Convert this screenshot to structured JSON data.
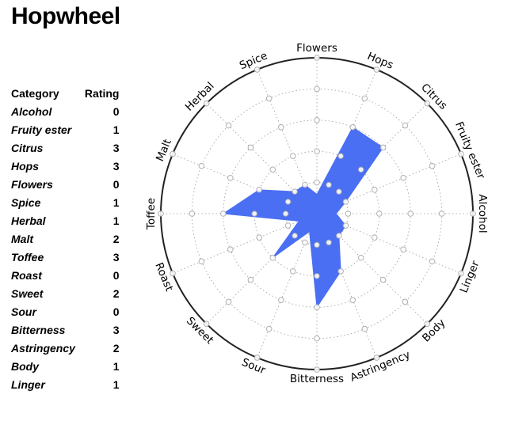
{
  "title": "Hopwheel",
  "table": {
    "header_category": "Category",
    "header_rating": "Rating"
  },
  "colors": {
    "fill": "#4a6ff3",
    "outer_ring": "#222222",
    "grid": "#9a9a9a",
    "marker_fill": "#ffffff",
    "marker_stroke": "#a8a8a8"
  },
  "chart_data": {
    "type": "radar",
    "title": "Hopwheel",
    "categories": [
      "Flowers",
      "Hops",
      "Citrus",
      "Fruity ester",
      "Alcohol",
      "Linger",
      "Body",
      "Astringency",
      "Bitterness",
      "Sour",
      "Sweet",
      "Roast",
      "Toffee",
      "Malt",
      "Herbal",
      "Spice"
    ],
    "values": [
      0,
      3,
      3,
      1,
      0,
      1,
      1,
      2,
      3,
      0,
      2,
      0,
      3,
      2,
      1,
      1
    ],
    "rlim": [
      0,
      5
    ],
    "ring_levels": [
      1,
      2,
      3,
      4,
      5
    ],
    "grid": true,
    "legend": "none",
    "table_rows": [
      {
        "category": "Alcohol",
        "rating": "0"
      },
      {
        "category": "Fruity ester",
        "rating": "1"
      },
      {
        "category": "Citrus",
        "rating": "3"
      },
      {
        "category": "Hops",
        "rating": "3"
      },
      {
        "category": "Flowers",
        "rating": "0"
      },
      {
        "category": "Spice",
        "rating": "1"
      },
      {
        "category": "Herbal",
        "rating": "1"
      },
      {
        "category": "Malt",
        "rating": "2"
      },
      {
        "category": "Toffee",
        "rating": "3"
      },
      {
        "category": "Roast",
        "rating": "0"
      },
      {
        "category": "Sweet",
        "rating": "2"
      },
      {
        "category": "Sour",
        "rating": "0"
      },
      {
        "category": "Bitterness",
        "rating": "3"
      },
      {
        "category": "Astringency",
        "rating": "2"
      },
      {
        "category": "Body",
        "rating": "1"
      },
      {
        "category": "Linger",
        "rating": "1"
      }
    ]
  }
}
